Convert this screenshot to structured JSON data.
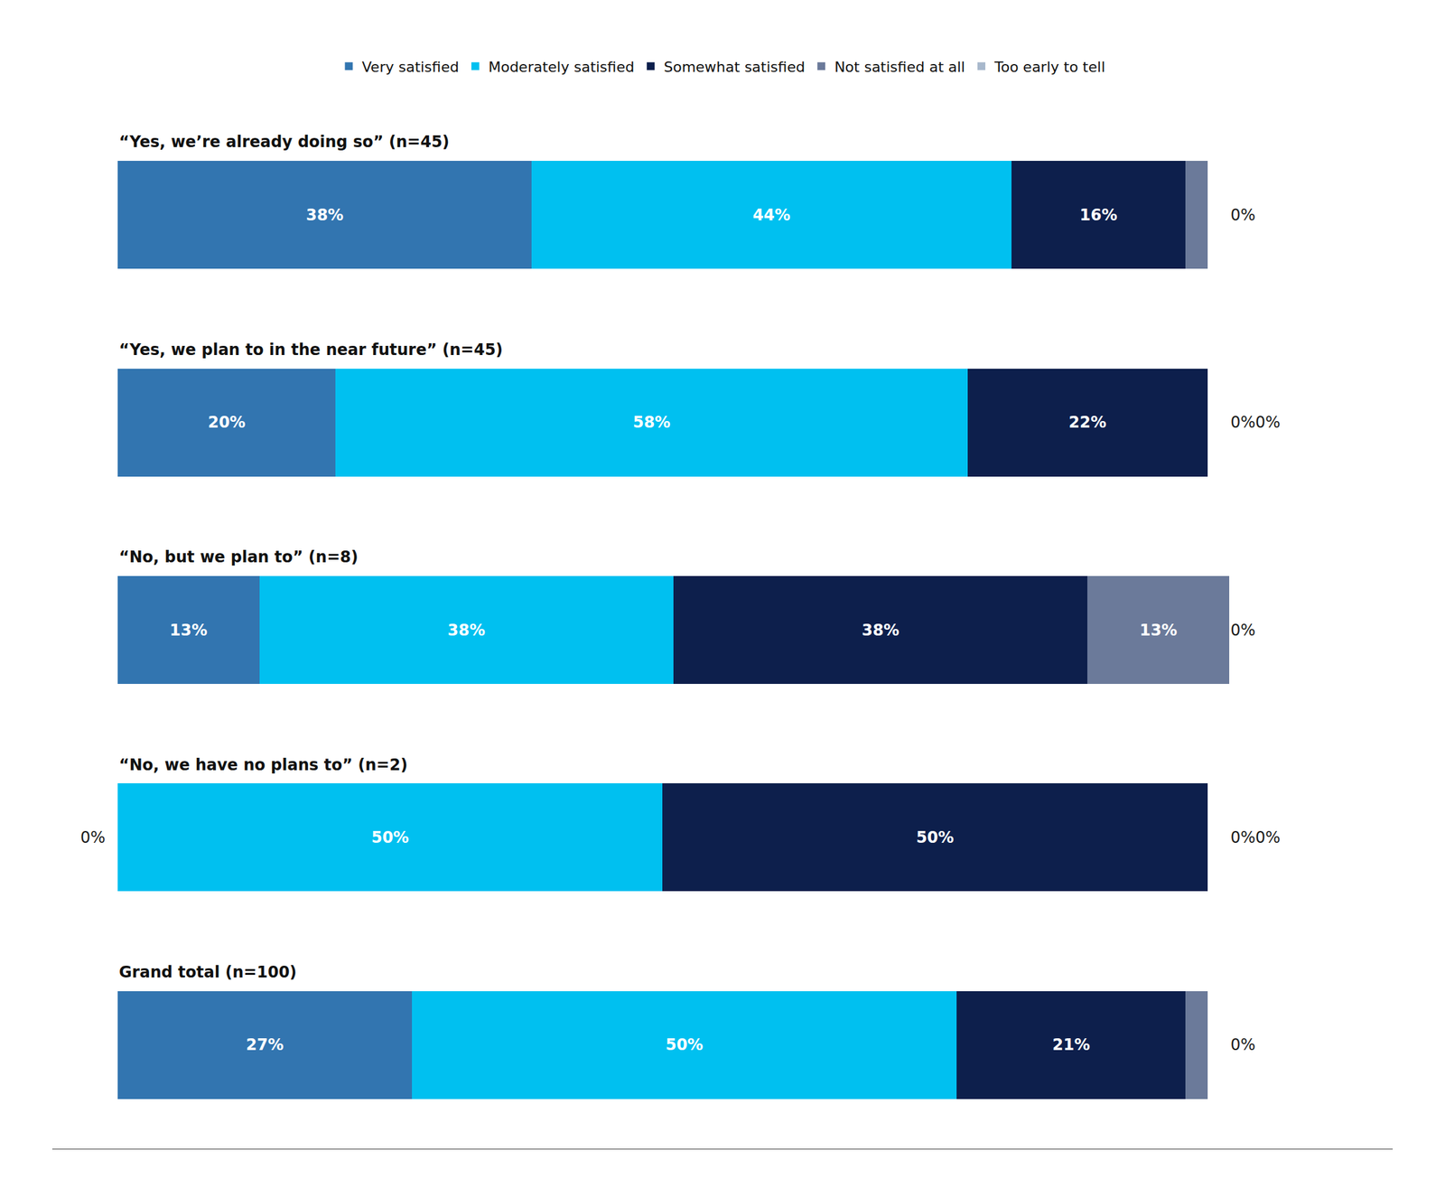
{
  "chart_data": {
    "type": "bar",
    "orientation": "horizontal",
    "stacked": true,
    "categories": [
      "“Yes, we’re already doing so” (n=45)",
      "“Yes, we plan to in the near future” (n=45)",
      "“No, but we plan to” (n=8)",
      "“No, we have no plans to” (n=2)",
      "Grand total (n=100)"
    ],
    "series": [
      {
        "name": "Very satisfied",
        "color": "#3275b0",
        "values": [
          38,
          20,
          13,
          0,
          27
        ],
        "value_labels": [
          "38%",
          "20%",
          "13%",
          null,
          "27%"
        ]
      },
      {
        "name": "Moderately satisfied",
        "color": "#00c0f0",
        "values": [
          44,
          58,
          38,
          50,
          50
        ],
        "value_labels": [
          "44%",
          "58%",
          "38%",
          "50%",
          "50%"
        ]
      },
      {
        "name": "Somewhat satisfied",
        "color": "#0d1f4c",
        "values": [
          16,
          22,
          38,
          50,
          21
        ],
        "value_labels": [
          "16%",
          "22%",
          "38%",
          "50%",
          "21%"
        ]
      },
      {
        "name": "Not satisfied at all",
        "color": "#6b7a9a",
        "values": [
          2,
          0,
          13,
          0,
          2
        ],
        "value_labels": [
          null,
          null,
          "13%",
          null,
          null
        ]
      },
      {
        "name": "Too early to tell",
        "color": "#a8b8cc",
        "values": [
          0,
          0,
          0,
          0,
          0
        ],
        "value_labels": [
          null,
          null,
          null,
          null,
          null
        ]
      }
    ],
    "data_labels": true,
    "xlim": [
      -6,
      117
    ],
    "tick_labels": false,
    "grid": false,
    "legend": "top",
    "annotations": [
      {
        "category": "“Yes, we’re already doing so” (n=45)",
        "x": 102,
        "text": "0%"
      },
      {
        "category": "“Yes, we plan to in the near future” (n=45)",
        "x": 102,
        "text": "0%0%"
      },
      {
        "category": "“No, but we plan to” (n=8)",
        "x": 102,
        "text": "0%"
      },
      {
        "category": "“No, we have no plans to” (n=2)",
        "x": -1,
        "text": "0%"
      },
      {
        "category": "“No, we have no plans to” (n=2)",
        "x": 102,
        "text": "0%0%"
      },
      {
        "category": "Grand total (n=100)",
        "x": 102,
        "text": "0%"
      }
    ]
  }
}
